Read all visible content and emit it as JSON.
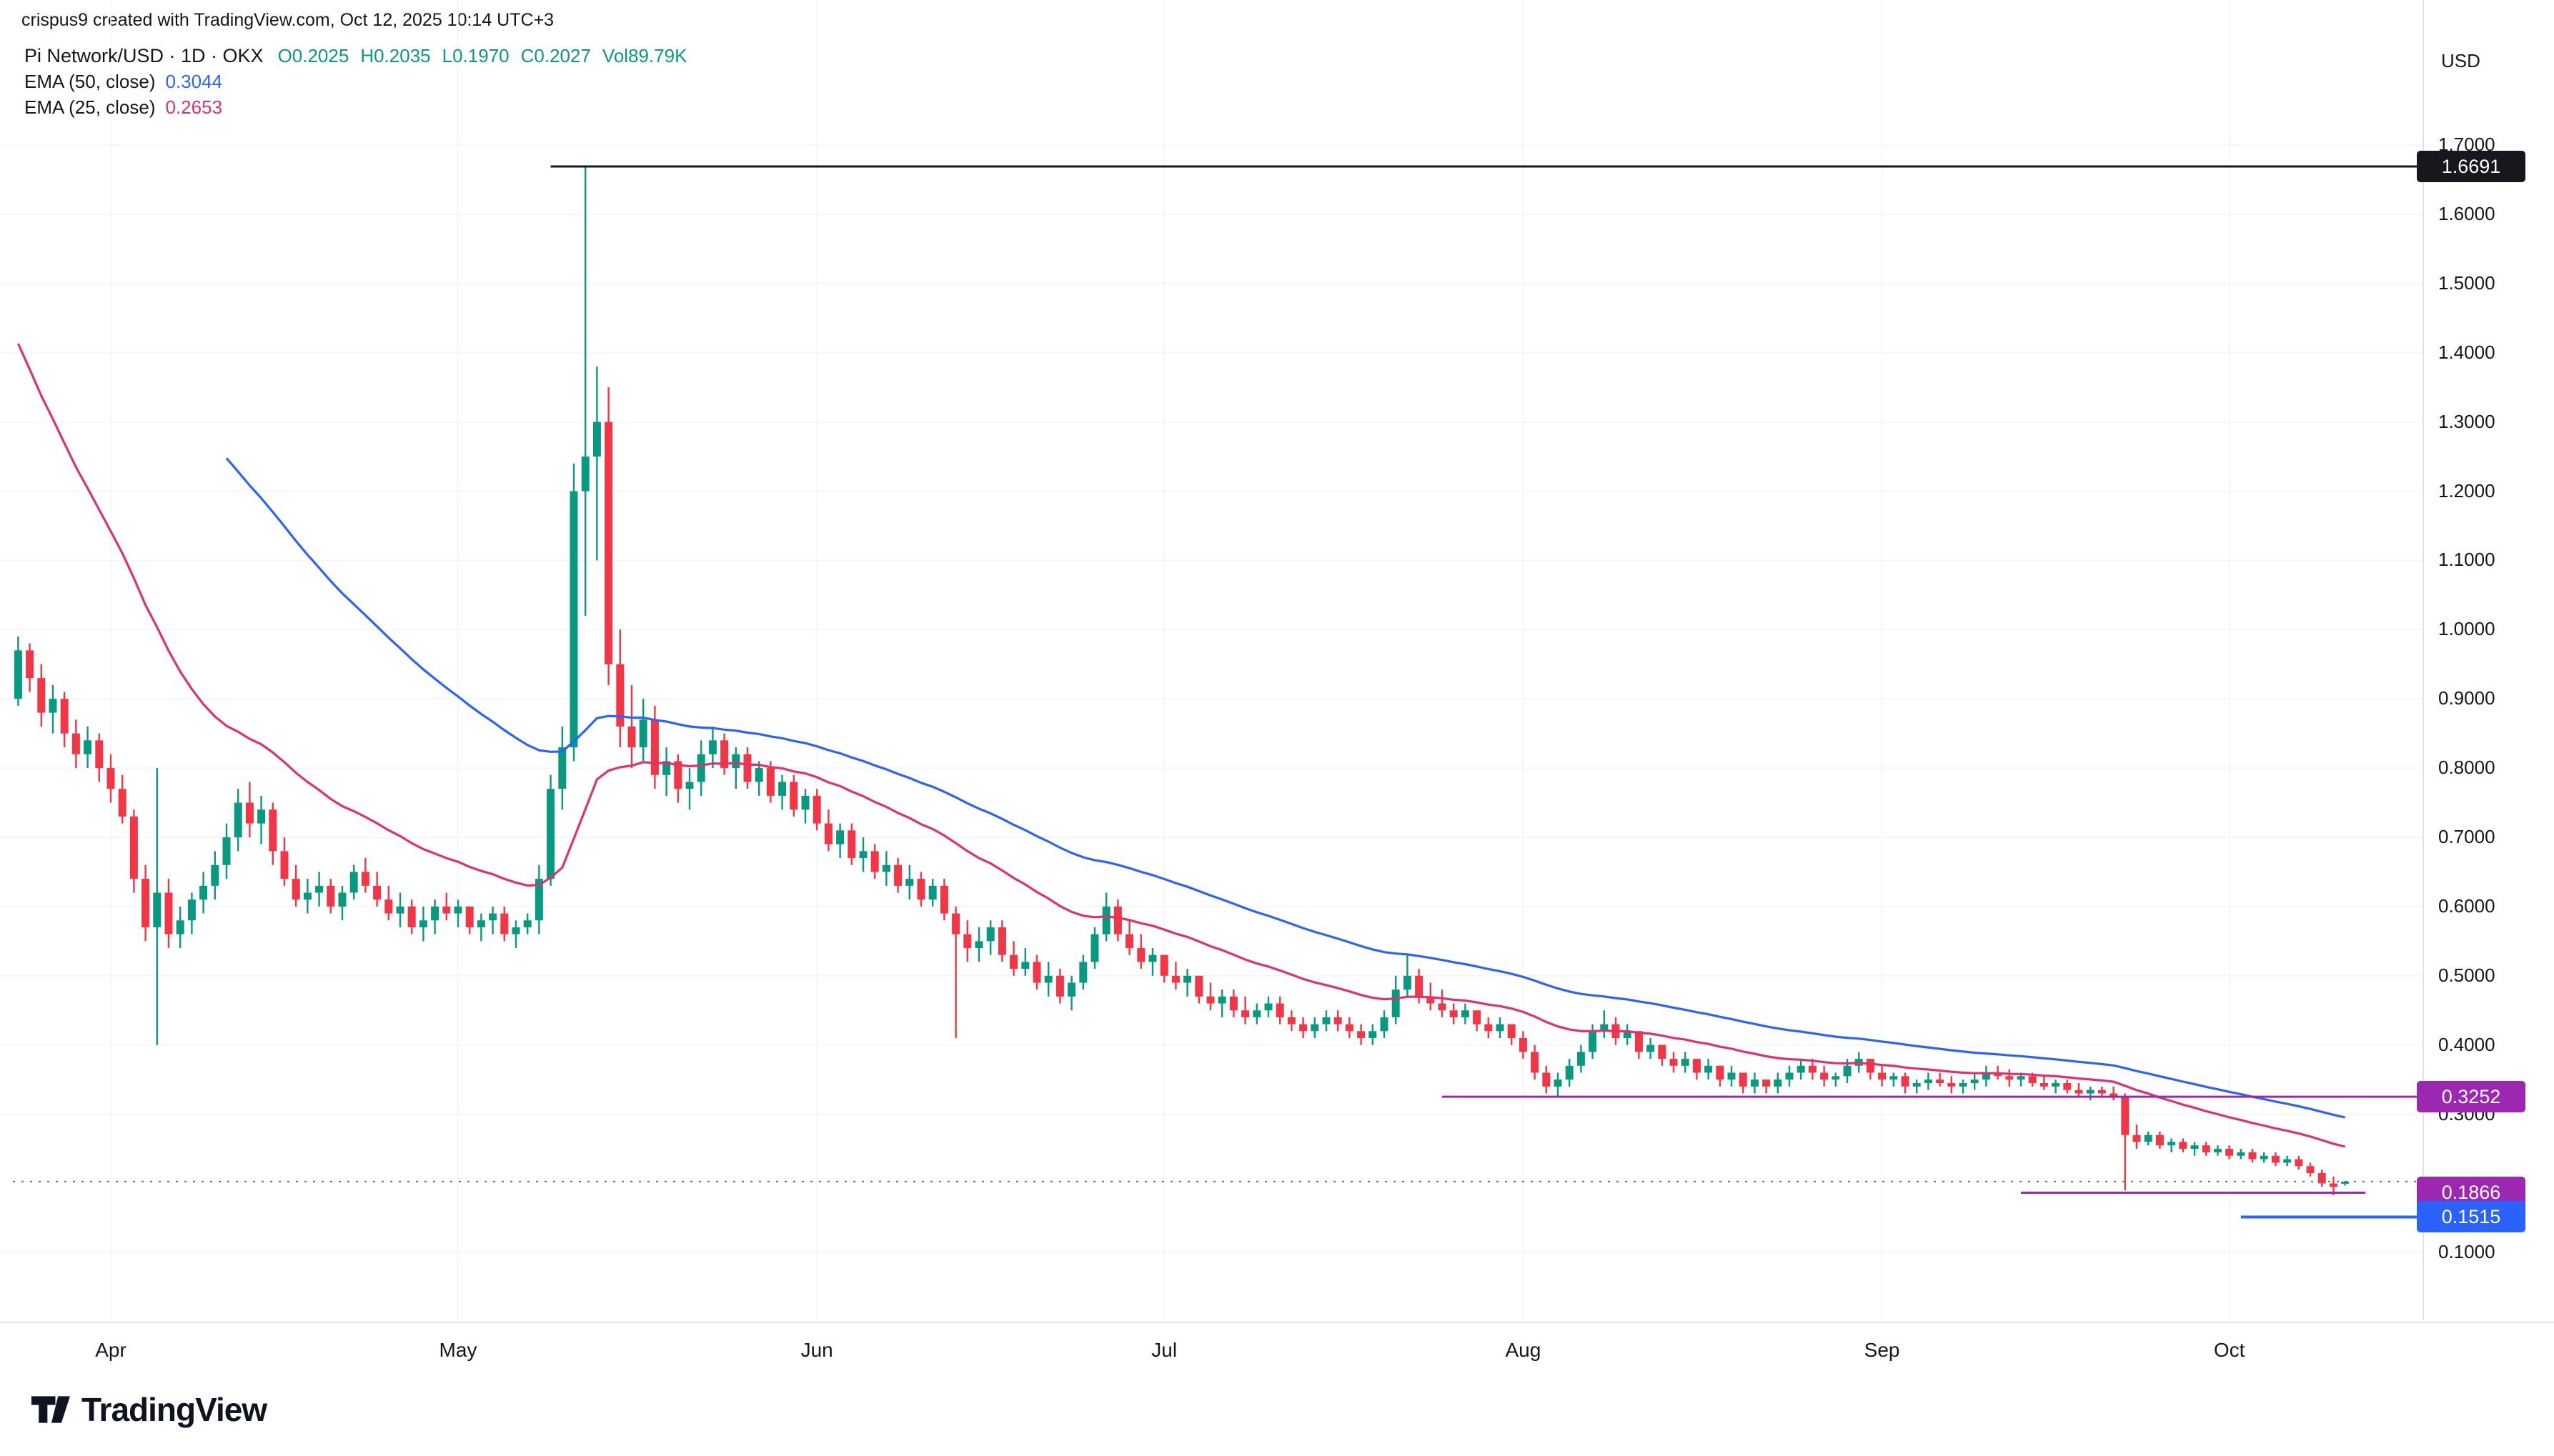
{
  "attribution": "crispus9 created with TradingView.com, Oct 12, 2025 10:14 UTC+3",
  "legend": {
    "symbol": "Pi Network/USD · 1D · OKX",
    "ohlc_color": "#089981",
    "ohlc": [
      {
        "id": "open",
        "text": "O0.2025"
      },
      {
        "id": "high",
        "text": "H0.2035"
      },
      {
        "id": "low",
        "text": "L0.1970"
      },
      {
        "id": "close",
        "text": "C0.2027"
      },
      {
        "id": "volume",
        "text": "Vol89.79K"
      }
    ],
    "ema50": {
      "label": "EMA (50, close)",
      "value": "0.3044",
      "color": "#2962FF"
    },
    "ema25": {
      "label": "EMA (25, close)",
      "value": "0.2653",
      "color": "#E0316E"
    }
  },
  "price_axis": {
    "currency": "USD",
    "ticks": [
      "1.7000",
      "1.6000",
      "1.5000",
      "1.4000",
      "1.3000",
      "1.2000",
      "1.1000",
      "1.0000",
      "0.9000",
      "0.8000",
      "0.7000",
      "0.6000",
      "0.5000",
      "0.4000",
      "0.3000",
      "0.1000"
    ]
  },
  "time_axis": {
    "labels": [
      {
        "text": "Apr",
        "day": 8
      },
      {
        "text": "May",
        "day": 38
      },
      {
        "text": "Jun",
        "day": 69
      },
      {
        "text": "Jul",
        "day": 99
      },
      {
        "text": "Aug",
        "day": 130
      },
      {
        "text": "Sep",
        "day": 161
      },
      {
        "text": "Oct",
        "day": 191
      }
    ]
  },
  "price_lines": [
    {
      "label": "1.6691",
      "price": 1.6691,
      "color": "#16181e",
      "width": 3,
      "start_day": 46
    },
    {
      "label": "0.3252",
      "price": 0.3252,
      "color": "#9C27B0",
      "width": 3,
      "start_day": 123
    },
    {
      "label": "0.1866",
      "price": 0.1866,
      "color": "#9C27B0",
      "width": 3,
      "start_day": 173,
      "end_x": 3310
    },
    {
      "label": "0.1515",
      "price": 0.1515,
      "color": "#2962FF",
      "width": 4,
      "start_day": 192
    }
  ],
  "current_price": {
    "value": "0.2027",
    "color": "#6a6d78",
    "style": "dotted"
  },
  "logo": {
    "text": "TradingView"
  },
  "chart_data": {
    "type": "candlestick",
    "symbol": "Pi Network/USD",
    "exchange": "OKX",
    "interval": "1D",
    "start_date": "2025-03-24",
    "y_range": [
      0.1,
      1.7
    ],
    "grid": true,
    "up_color": "#089981",
    "down_color": "#F23645",
    "indicators": [
      {
        "name": "EMA 50",
        "period": 50,
        "color": "#2962FF",
        "seed": 1.27,
        "start_index": 18,
        "current_value": 0.3044
      },
      {
        "name": "EMA 25",
        "period": 25,
        "color": "#E0316E",
        "seed": 1.45,
        "start_index": 0,
        "current_value": 0.2653
      }
    ],
    "candles": [
      [
        0.9,
        0.99,
        0.89,
        0.97
      ],
      [
        0.97,
        0.98,
        0.91,
        0.93
      ],
      [
        0.93,
        0.95,
        0.86,
        0.88
      ],
      [
        0.88,
        0.92,
        0.85,
        0.9
      ],
      [
        0.9,
        0.91,
        0.83,
        0.85
      ],
      [
        0.85,
        0.87,
        0.8,
        0.82
      ],
      [
        0.82,
        0.86,
        0.8,
        0.84
      ],
      [
        0.84,
        0.85,
        0.78,
        0.8
      ],
      [
        0.8,
        0.82,
        0.75,
        0.77
      ],
      [
        0.77,
        0.79,
        0.72,
        0.73
      ],
      [
        0.73,
        0.74,
        0.62,
        0.64
      ],
      [
        0.64,
        0.66,
        0.55,
        0.57
      ],
      [
        0.57,
        0.8,
        0.4,
        0.62
      ],
      [
        0.62,
        0.64,
        0.54,
        0.56
      ],
      [
        0.56,
        0.6,
        0.54,
        0.58
      ],
      [
        0.58,
        0.62,
        0.56,
        0.61
      ],
      [
        0.61,
        0.65,
        0.59,
        0.63
      ],
      [
        0.63,
        0.68,
        0.61,
        0.66
      ],
      [
        0.66,
        0.72,
        0.64,
        0.7
      ],
      [
        0.7,
        0.77,
        0.68,
        0.75
      ],
      [
        0.75,
        0.78,
        0.7,
        0.72
      ],
      [
        0.72,
        0.76,
        0.69,
        0.74
      ],
      [
        0.74,
        0.75,
        0.66,
        0.68
      ],
      [
        0.68,
        0.7,
        0.63,
        0.64
      ],
      [
        0.64,
        0.66,
        0.6,
        0.61
      ],
      [
        0.61,
        0.64,
        0.59,
        0.62
      ],
      [
        0.62,
        0.65,
        0.6,
        0.63
      ],
      [
        0.63,
        0.64,
        0.59,
        0.6
      ],
      [
        0.6,
        0.63,
        0.58,
        0.62
      ],
      [
        0.62,
        0.66,
        0.61,
        0.65
      ],
      [
        0.65,
        0.67,
        0.62,
        0.63
      ],
      [
        0.63,
        0.65,
        0.6,
        0.61
      ],
      [
        0.61,
        0.63,
        0.58,
        0.59
      ],
      [
        0.59,
        0.62,
        0.57,
        0.6
      ],
      [
        0.6,
        0.61,
        0.56,
        0.57
      ],
      [
        0.57,
        0.6,
        0.55,
        0.58
      ],
      [
        0.58,
        0.61,
        0.56,
        0.6
      ],
      [
        0.6,
        0.62,
        0.58,
        0.59
      ],
      [
        0.59,
        0.61,
        0.57,
        0.6
      ],
      [
        0.6,
        0.6,
        0.56,
        0.57
      ],
      [
        0.57,
        0.59,
        0.55,
        0.58
      ],
      [
        0.58,
        0.6,
        0.56,
        0.59
      ],
      [
        0.59,
        0.6,
        0.55,
        0.56
      ],
      [
        0.56,
        0.58,
        0.54,
        0.57
      ],
      [
        0.57,
        0.59,
        0.56,
        0.58
      ],
      [
        0.58,
        0.66,
        0.56,
        0.64
      ],
      [
        0.64,
        0.79,
        0.63,
        0.77
      ],
      [
        0.77,
        0.86,
        0.74,
        0.83
      ],
      [
        0.83,
        1.24,
        0.81,
        1.2
      ],
      [
        1.2,
        1.6691,
        1.02,
        1.25
      ],
      [
        1.25,
        1.38,
        1.1,
        1.3
      ],
      [
        1.3,
        1.35,
        0.92,
        0.95
      ],
      [
        0.95,
        1.0,
        0.83,
        0.86
      ],
      [
        0.86,
        0.92,
        0.8,
        0.83
      ],
      [
        0.83,
        0.9,
        0.81,
        0.87
      ],
      [
        0.87,
        0.89,
        0.77,
        0.79
      ],
      [
        0.79,
        0.83,
        0.76,
        0.81
      ],
      [
        0.81,
        0.82,
        0.75,
        0.77
      ],
      [
        0.77,
        0.8,
        0.74,
        0.78
      ],
      [
        0.78,
        0.84,
        0.76,
        0.82
      ],
      [
        0.82,
        0.86,
        0.8,
        0.84
      ],
      [
        0.84,
        0.85,
        0.79,
        0.8
      ],
      [
        0.8,
        0.83,
        0.77,
        0.82
      ],
      [
        0.82,
        0.83,
        0.77,
        0.78
      ],
      [
        0.78,
        0.81,
        0.76,
        0.8
      ],
      [
        0.8,
        0.81,
        0.75,
        0.76
      ],
      [
        0.76,
        0.79,
        0.74,
        0.78
      ],
      [
        0.78,
        0.79,
        0.73,
        0.74
      ],
      [
        0.74,
        0.77,
        0.72,
        0.76
      ],
      [
        0.76,
        0.77,
        0.71,
        0.72
      ],
      [
        0.72,
        0.74,
        0.68,
        0.69
      ],
      [
        0.69,
        0.72,
        0.67,
        0.71
      ],
      [
        0.71,
        0.72,
        0.66,
        0.67
      ],
      [
        0.67,
        0.7,
        0.65,
        0.68
      ],
      [
        0.68,
        0.69,
        0.64,
        0.65
      ],
      [
        0.65,
        0.68,
        0.63,
        0.66
      ],
      [
        0.66,
        0.67,
        0.62,
        0.63
      ],
      [
        0.63,
        0.66,
        0.61,
        0.64
      ],
      [
        0.64,
        0.65,
        0.6,
        0.61
      ],
      [
        0.61,
        0.64,
        0.6,
        0.63
      ],
      [
        0.63,
        0.64,
        0.58,
        0.59
      ],
      [
        0.59,
        0.6,
        0.41,
        0.56
      ],
      [
        0.56,
        0.58,
        0.52,
        0.54
      ],
      [
        0.54,
        0.57,
        0.52,
        0.55
      ],
      [
        0.55,
        0.58,
        0.53,
        0.57
      ],
      [
        0.57,
        0.58,
        0.52,
        0.53
      ],
      [
        0.53,
        0.55,
        0.5,
        0.51
      ],
      [
        0.51,
        0.54,
        0.5,
        0.52
      ],
      [
        0.52,
        0.53,
        0.48,
        0.49
      ],
      [
        0.49,
        0.52,
        0.47,
        0.5
      ],
      [
        0.5,
        0.51,
        0.46,
        0.47
      ],
      [
        0.47,
        0.5,
        0.45,
        0.49
      ],
      [
        0.49,
        0.53,
        0.48,
        0.52
      ],
      [
        0.52,
        0.57,
        0.51,
        0.56
      ],
      [
        0.56,
        0.62,
        0.55,
        0.6
      ],
      [
        0.6,
        0.61,
        0.55,
        0.56
      ],
      [
        0.56,
        0.58,
        0.53,
        0.54
      ],
      [
        0.54,
        0.56,
        0.51,
        0.52
      ],
      [
        0.52,
        0.54,
        0.5,
        0.53
      ],
      [
        0.53,
        0.53,
        0.49,
        0.5
      ],
      [
        0.5,
        0.52,
        0.48,
        0.49
      ],
      [
        0.49,
        0.51,
        0.47,
        0.5
      ],
      [
        0.5,
        0.5,
        0.46,
        0.47
      ],
      [
        0.47,
        0.49,
        0.45,
        0.46
      ],
      [
        0.46,
        0.48,
        0.44,
        0.47
      ],
      [
        0.47,
        0.48,
        0.44,
        0.45
      ],
      [
        0.45,
        0.47,
        0.43,
        0.44
      ],
      [
        0.44,
        0.46,
        0.43,
        0.45
      ],
      [
        0.45,
        0.47,
        0.44,
        0.46
      ],
      [
        0.46,
        0.47,
        0.43,
        0.44
      ],
      [
        0.44,
        0.45,
        0.42,
        0.43
      ],
      [
        0.43,
        0.44,
        0.41,
        0.42
      ],
      [
        0.42,
        0.44,
        0.41,
        0.43
      ],
      [
        0.43,
        0.45,
        0.42,
        0.44
      ],
      [
        0.44,
        0.45,
        0.42,
        0.43
      ],
      [
        0.43,
        0.44,
        0.41,
        0.42
      ],
      [
        0.42,
        0.43,
        0.4,
        0.41
      ],
      [
        0.41,
        0.43,
        0.4,
        0.42
      ],
      [
        0.42,
        0.45,
        0.41,
        0.44
      ],
      [
        0.44,
        0.5,
        0.43,
        0.48
      ],
      [
        0.48,
        0.53,
        0.47,
        0.5
      ],
      [
        0.5,
        0.51,
        0.46,
        0.47
      ],
      [
        0.47,
        0.49,
        0.45,
        0.46
      ],
      [
        0.46,
        0.48,
        0.44,
        0.45
      ],
      [
        0.45,
        0.46,
        0.43,
        0.44
      ],
      [
        0.44,
        0.46,
        0.43,
        0.45
      ],
      [
        0.45,
        0.45,
        0.42,
        0.43
      ],
      [
        0.43,
        0.44,
        0.41,
        0.42
      ],
      [
        0.42,
        0.44,
        0.41,
        0.43
      ],
      [
        0.43,
        0.43,
        0.4,
        0.41
      ],
      [
        0.41,
        0.42,
        0.38,
        0.39
      ],
      [
        0.39,
        0.4,
        0.35,
        0.36
      ],
      [
        0.36,
        0.37,
        0.33,
        0.34
      ],
      [
        0.34,
        0.36,
        0.325,
        0.35
      ],
      [
        0.35,
        0.38,
        0.34,
        0.37
      ],
      [
        0.37,
        0.4,
        0.36,
        0.39
      ],
      [
        0.39,
        0.43,
        0.38,
        0.42
      ],
      [
        0.42,
        0.45,
        0.41,
        0.43
      ],
      [
        0.43,
        0.44,
        0.4,
        0.41
      ],
      [
        0.41,
        0.43,
        0.4,
        0.42
      ],
      [
        0.42,
        0.42,
        0.38,
        0.39
      ],
      [
        0.39,
        0.41,
        0.38,
        0.4
      ],
      [
        0.4,
        0.4,
        0.37,
        0.38
      ],
      [
        0.38,
        0.39,
        0.36,
        0.37
      ],
      [
        0.37,
        0.39,
        0.36,
        0.38
      ],
      [
        0.38,
        0.38,
        0.35,
        0.36
      ],
      [
        0.36,
        0.38,
        0.35,
        0.37
      ],
      [
        0.37,
        0.37,
        0.34,
        0.35
      ],
      [
        0.35,
        0.37,
        0.34,
        0.36
      ],
      [
        0.36,
        0.36,
        0.33,
        0.34
      ],
      [
        0.34,
        0.36,
        0.33,
        0.35
      ],
      [
        0.35,
        0.35,
        0.33,
        0.34
      ],
      [
        0.34,
        0.36,
        0.33,
        0.35
      ],
      [
        0.35,
        0.37,
        0.34,
        0.36
      ],
      [
        0.36,
        0.38,
        0.35,
        0.37
      ],
      [
        0.37,
        0.38,
        0.35,
        0.36
      ],
      [
        0.36,
        0.37,
        0.34,
        0.35
      ],
      [
        0.35,
        0.36,
        0.34,
        0.355
      ],
      [
        0.355,
        0.38,
        0.345,
        0.37
      ],
      [
        0.37,
        0.39,
        0.36,
        0.38
      ],
      [
        0.38,
        0.38,
        0.35,
        0.36
      ],
      [
        0.36,
        0.37,
        0.34,
        0.35
      ],
      [
        0.35,
        0.36,
        0.34,
        0.355
      ],
      [
        0.355,
        0.36,
        0.33,
        0.34
      ],
      [
        0.34,
        0.35,
        0.33,
        0.345
      ],
      [
        0.345,
        0.36,
        0.335,
        0.35
      ],
      [
        0.35,
        0.36,
        0.34,
        0.345
      ],
      [
        0.345,
        0.355,
        0.33,
        0.34
      ],
      [
        0.34,
        0.35,
        0.33,
        0.345
      ],
      [
        0.345,
        0.36,
        0.335,
        0.35
      ],
      [
        0.35,
        0.37,
        0.34,
        0.36
      ],
      [
        0.36,
        0.37,
        0.35,
        0.355
      ],
      [
        0.355,
        0.365,
        0.34,
        0.35
      ],
      [
        0.35,
        0.36,
        0.34,
        0.355
      ],
      [
        0.355,
        0.36,
        0.34,
        0.345
      ],
      [
        0.345,
        0.355,
        0.335,
        0.34
      ],
      [
        0.34,
        0.35,
        0.33,
        0.345
      ],
      [
        0.345,
        0.35,
        0.33,
        0.335
      ],
      [
        0.335,
        0.345,
        0.325,
        0.33
      ],
      [
        0.33,
        0.34,
        0.32,
        0.335
      ],
      [
        0.335,
        0.34,
        0.325,
        0.33
      ],
      [
        0.33,
        0.34,
        0.32,
        0.325
      ],
      [
        0.325,
        0.33,
        0.19,
        0.27
      ],
      [
        0.27,
        0.285,
        0.25,
        0.26
      ],
      [
        0.26,
        0.275,
        0.255,
        0.27
      ],
      [
        0.27,
        0.275,
        0.25,
        0.255
      ],
      [
        0.255,
        0.265,
        0.245,
        0.26
      ],
      [
        0.26,
        0.265,
        0.245,
        0.25
      ],
      [
        0.25,
        0.26,
        0.24,
        0.255
      ],
      [
        0.255,
        0.26,
        0.24,
        0.245
      ],
      [
        0.245,
        0.255,
        0.24,
        0.25
      ],
      [
        0.25,
        0.255,
        0.235,
        0.24
      ],
      [
        0.24,
        0.25,
        0.235,
        0.245
      ],
      [
        0.245,
        0.25,
        0.23,
        0.235
      ],
      [
        0.235,
        0.245,
        0.23,
        0.24
      ],
      [
        0.24,
        0.245,
        0.225,
        0.23
      ],
      [
        0.23,
        0.24,
        0.225,
        0.235
      ],
      [
        0.235,
        0.24,
        0.22,
        0.225
      ],
      [
        0.225,
        0.23,
        0.21,
        0.215
      ],
      [
        0.215,
        0.22,
        0.195,
        0.2
      ],
      [
        0.2,
        0.21,
        0.183,
        0.195
      ],
      [
        0.2025,
        0.2035,
        0.197,
        0.2027
      ]
    ]
  }
}
